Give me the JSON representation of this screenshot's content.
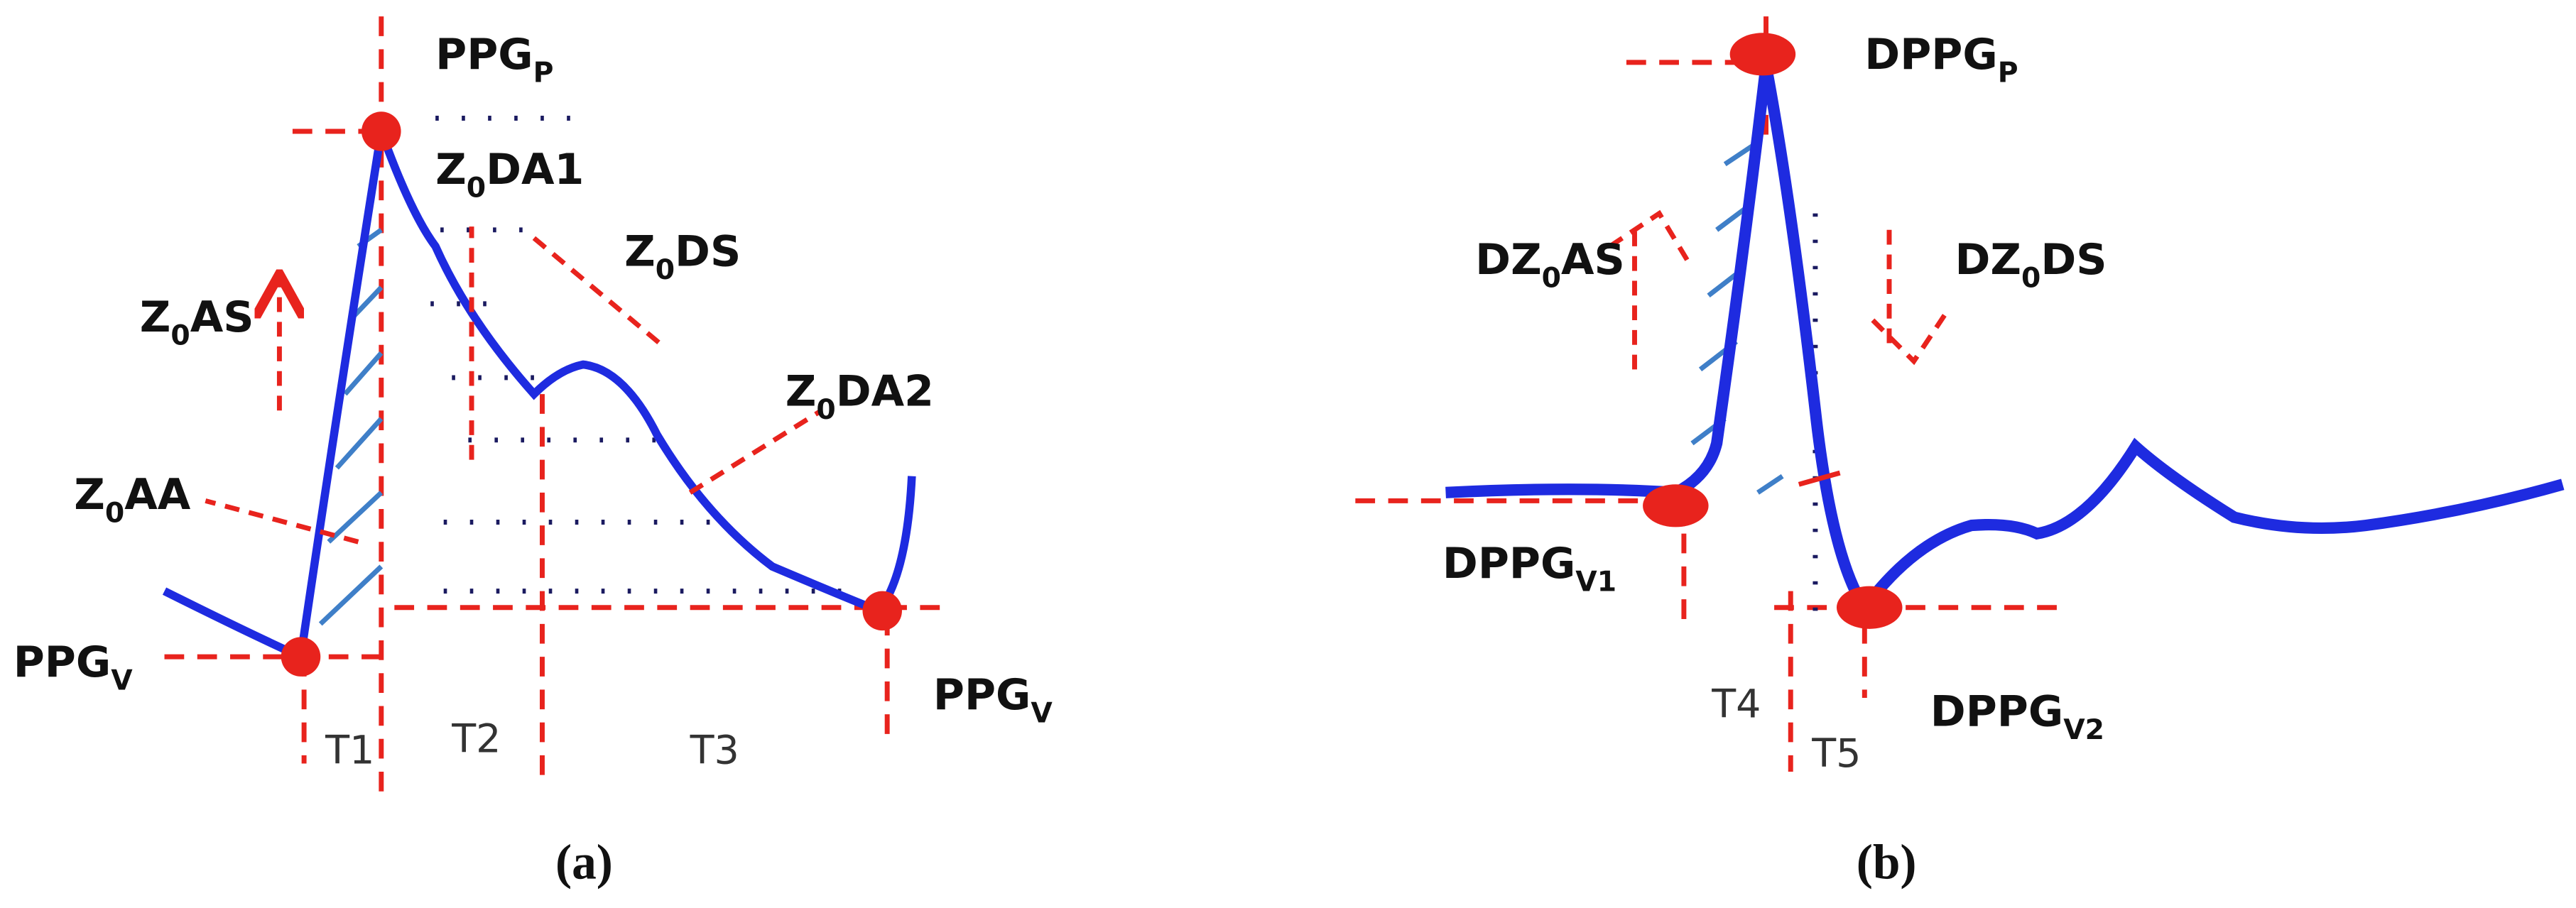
{
  "panel_a": {
    "caption": "(a)",
    "labels": [
      {
        "parts": [
          {
            "text": "PPG"
          },
          {
            "sub": "P"
          }
        ]
      },
      {
        "parts": [
          {
            "text": "Z"
          },
          {
            "sub": "0"
          },
          {
            "text": "DA1"
          }
        ]
      },
      {
        "parts": [
          {
            "text": "Z"
          },
          {
            "sub": "0"
          },
          {
            "text": "DS"
          }
        ]
      },
      {
        "parts": [
          {
            "text": "Z"
          },
          {
            "sub": "0"
          },
          {
            "text": "AS"
          }
        ]
      },
      {
        "parts": [
          {
            "text": "Z"
          },
          {
            "sub": "0"
          },
          {
            "text": "DA2"
          }
        ]
      },
      {
        "parts": [
          {
            "text": "Z"
          },
          {
            "sub": "0"
          },
          {
            "text": "AA"
          }
        ]
      },
      {
        "parts": [
          {
            "text": "PPG"
          },
          {
            "sub": "V"
          }
        ]
      },
      {
        "parts": [
          {
            "text": "PPG"
          },
          {
            "sub": "V"
          }
        ]
      }
    ],
    "intervals": [
      "T1",
      "T2",
      "T3"
    ]
  },
  "panel_b": {
    "caption": "(b)",
    "labels": [
      {
        "parts": [
          {
            "text": "DPPG"
          },
          {
            "sub": "P"
          }
        ]
      },
      {
        "parts": [
          {
            "text": "DZ"
          },
          {
            "sub": "0"
          },
          {
            "text": "AS"
          }
        ]
      },
      {
        "parts": [
          {
            "text": "DZ"
          },
          {
            "sub": "0"
          },
          {
            "text": "DS"
          }
        ]
      },
      {
        "parts": [
          {
            "text": "DPPG"
          },
          {
            "sub": "V1"
          }
        ]
      },
      {
        "parts": [
          {
            "text": "DPPG"
          },
          {
            "sub": "V2"
          }
        ]
      }
    ],
    "intervals": [
      "T4",
      "T5"
    ]
  }
}
